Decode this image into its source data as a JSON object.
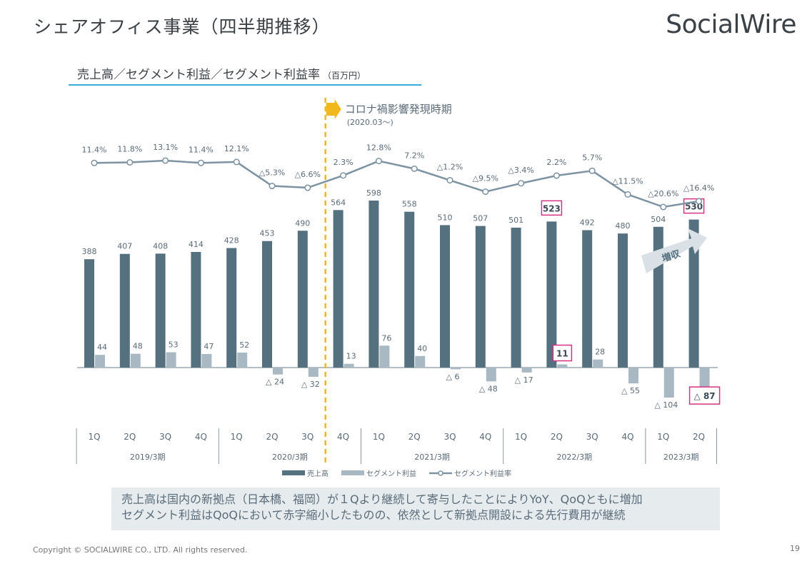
{
  "header": {
    "title": "シェアオフィス事業（四半期推移）",
    "logo": "SocialWire"
  },
  "subtitle": {
    "text": "売上高／セグメント利益／セグメント利益率",
    "unit": "（百万円）"
  },
  "annotation": {
    "covid_label": "コロナ禍影響発現時期",
    "covid_date": "(2020.03〜)",
    "arrow_label": "増収"
  },
  "colors": {
    "sales": "#55707f",
    "profit": "#a9b9c4",
    "rate": "#7d93a1",
    "highlight": "#d63384",
    "covid_line": "#f0b81c"
  },
  "legend": {
    "sales": "売上高",
    "profit": "セグメント利益",
    "rate": "セグメント利益率"
  },
  "chart_data": {
    "type": "bar",
    "quarters": [
      "1Q",
      "2Q",
      "3Q",
      "4Q",
      "1Q",
      "2Q",
      "3Q",
      "4Q",
      "1Q",
      "2Q",
      "3Q",
      "4Q",
      "1Q",
      "2Q",
      "3Q",
      "4Q",
      "1Q",
      "2Q"
    ],
    "fiscal_years": [
      {
        "label": "2019/3期",
        "span": 4
      },
      {
        "label": "2020/3期",
        "span": 4
      },
      {
        "label": "2021/3期",
        "span": 4
      },
      {
        "label": "2022/3期",
        "span": 4
      },
      {
        "label": "2023/3期",
        "span": 2
      }
    ],
    "series": [
      {
        "name": "売上高",
        "values": [
          388,
          407,
          408,
          414,
          428,
          453,
          490,
          564,
          598,
          558,
          510,
          507,
          501,
          523,
          492,
          480,
          504,
          530
        ],
        "labels": [
          "388",
          "407",
          "408",
          "414",
          "428",
          "453",
          "490",
          "564",
          "598",
          "558",
          "510",
          "507",
          "501",
          "523",
          "492",
          "480",
          "504",
          "530"
        ]
      },
      {
        "name": "セグメント利益",
        "values": [
          44,
          48,
          53,
          47,
          52,
          -24,
          -32,
          13,
          76,
          40,
          -6,
          -48,
          -17,
          11,
          28,
          -55,
          -104,
          -87
        ],
        "labels": [
          "44",
          "48",
          "53",
          "47",
          "52",
          "△ 24",
          "△ 32",
          "13",
          "76",
          "40",
          "△ 6",
          "△ 48",
          "△ 17",
          "11",
          "28",
          "△ 55",
          "△ 104",
          "△ 87"
        ]
      },
      {
        "name": "セグメント利益率",
        "values": [
          11.4,
          11.8,
          13.1,
          11.4,
          12.1,
          -5.3,
          -6.6,
          2.3,
          12.8,
          7.2,
          -1.2,
          -9.5,
          -3.4,
          2.2,
          5.7,
          -11.5,
          -20.6,
          -16.4
        ],
        "labels": [
          "11.4%",
          "11.8%",
          "13.1%",
          "11.4%",
          "12.1%",
          "△5.3%",
          "△6.6%",
          "2.3%",
          "12.8%",
          "7.2%",
          "△1.2%",
          "△9.5%",
          "△3.4%",
          "2.2%",
          "5.7%",
          "△11.5%",
          "△20.6%",
          "△16.4%"
        ]
      }
    ],
    "highlighted": {
      "sales": [
        13,
        17
      ],
      "profit": [
        13,
        17
      ]
    }
  },
  "note": {
    "line1": "売上高は国内の新拠点（日本橋、福岡）が１Qより継続して寄与したことによりYoY、QoQともに増加",
    "line2": "セグメント利益はQoQにおいて赤字縮小したものの、依然として新拠点開設による先行費用が継続"
  },
  "footer": {
    "copyright": "Copyright © SOCIALWIRE CO., LTD. All rights reserved.",
    "page": "19"
  }
}
